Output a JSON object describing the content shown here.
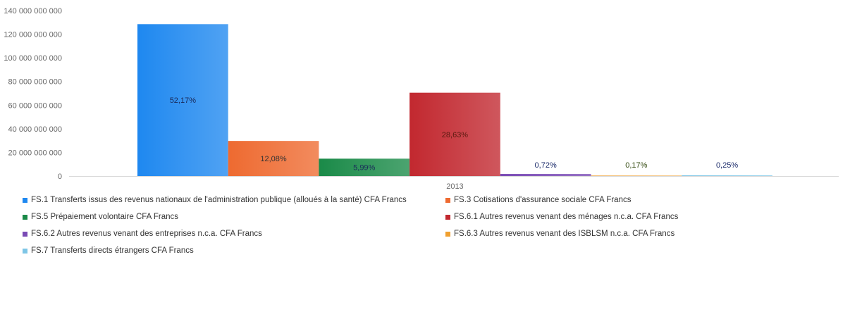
{
  "chart_data": {
    "type": "bar",
    "categories": [
      "2013"
    ],
    "ylim": [
      0,
      140000000000
    ],
    "yticks": [
      0,
      20000000000,
      40000000000,
      60000000000,
      80000000000,
      100000000000,
      120000000000,
      140000000000
    ],
    "ytick_labels": [
      "0",
      "20 000 000 000",
      "40 000 000 000",
      "60 000 000 000",
      "80 000 000 000",
      "100 000 000 000",
      "120 000 000 000",
      "140 000 000 000"
    ],
    "grid": false,
    "legend_position": "bottom",
    "series": [
      {
        "name": "FS.1 Transferts issus des revenus nationaux de l'administration publique (alloués à la santé) CFA Francs",
        "values": [
          128500000000
        ],
        "label": "52,17%",
        "color": "#1e88f0",
        "label_color": "#1a2a5a"
      },
      {
        "name": "FS.3 Cotisations d'assurance sociale CFA Francs",
        "values": [
          29700000000
        ],
        "label": "12,08%",
        "color": "#ee6a30",
        "label_color": "#333333"
      },
      {
        "name": "FS.5 Prépaiement volontaire CFA Francs",
        "values": [
          14700000000
        ],
        "label": "5,99%",
        "color": "#1a8a48",
        "label_color": "#1a2a5a"
      },
      {
        "name": "FS.6.1 Autres revenus venant des ménages n.c.a. CFA Francs",
        "values": [
          70500000000
        ],
        "label": "28,63%",
        "color": "#c2282f",
        "label_color": "#5a1a10"
      },
      {
        "name": "FS.6.2 Autres revenus venant des entreprises n.c.a. CFA Francs",
        "values": [
          1770000000
        ],
        "label": "0,72%",
        "color": "#7a4bb5",
        "label_color": "#1a2a6a"
      },
      {
        "name": "FS.6.3 Autres revenus venant des ISBLSM n.c.a. CFA Francs",
        "values": [
          420000000
        ],
        "label": "0,17%",
        "color": "#f0a030",
        "label_color": "#334a10"
      },
      {
        "name": "FS.7 Transferts directs étrangers  CFA Francs",
        "values": [
          620000000
        ],
        "label": "0,25%",
        "color": "#7ec6e6",
        "label_color": "#1a2a6a"
      }
    ]
  }
}
